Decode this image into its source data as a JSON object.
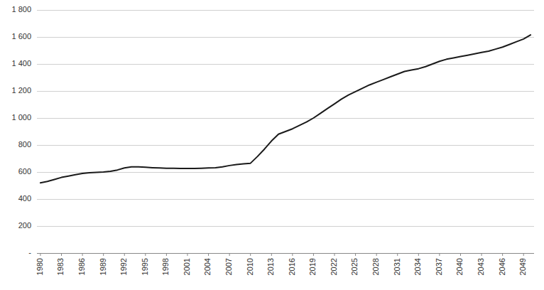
{
  "chart_data": {
    "type": "line",
    "x": [
      1980,
      1981,
      1982,
      1983,
      1984,
      1985,
      1986,
      1987,
      1988,
      1989,
      1990,
      1991,
      1992,
      1993,
      1994,
      1995,
      1996,
      1997,
      1998,
      1999,
      2000,
      2001,
      2002,
      2003,
      2004,
      2005,
      2006,
      2007,
      2008,
      2009,
      2010,
      2011,
      2012,
      2013,
      2014,
      2015,
      2016,
      2017,
      2018,
      2019,
      2020,
      2021,
      2022,
      2023,
      2024,
      2025,
      2026,
      2027,
      2028,
      2029,
      2030,
      2031,
      2032,
      2033,
      2034,
      2035,
      2036,
      2037,
      2038,
      2039,
      2040,
      2041,
      2042,
      2043,
      2044,
      2045,
      2046,
      2047,
      2048,
      2049,
      2050
    ],
    "values": [
      520,
      530,
      545,
      560,
      570,
      580,
      590,
      595,
      598,
      600,
      605,
      615,
      630,
      638,
      638,
      635,
      632,
      630,
      628,
      627,
      626,
      626,
      626,
      628,
      630,
      632,
      638,
      648,
      655,
      660,
      665,
      715,
      770,
      830,
      880,
      900,
      920,
      945,
      970,
      1000,
      1035,
      1070,
      1105,
      1140,
      1170,
      1195,
      1220,
      1245,
      1265,
      1285,
      1305,
      1325,
      1345,
      1355,
      1365,
      1380,
      1400,
      1420,
      1435,
      1445,
      1455,
      1465,
      1475,
      1485,
      1495,
      1510,
      1525,
      1545,
      1565,
      1585,
      1615
    ],
    "color": "#1a1a1a",
    "xlim": [
      1979.5,
      2050.5
    ],
    "xticks": [
      1980,
      1983,
      1986,
      1989,
      1992,
      1995,
      1998,
      2001,
      2004,
      2007,
      2010,
      2013,
      2016,
      2019,
      2022,
      2025,
      2028,
      2031,
      2034,
      2037,
      2040,
      2043,
      2046,
      2049
    ],
    "ylim": [
      0,
      1800
    ],
    "yticks": [
      {
        "value": 0,
        "label": "-"
      },
      200,
      400,
      600,
      800,
      {
        "value": 1000,
        "label": "1 000"
      },
      {
        "value": 1200,
        "label": "1 200"
      },
      {
        "value": 1400,
        "label": "1 400"
      },
      {
        "value": 1600,
        "label": "1 600"
      },
      {
        "value": 1800,
        "label": "1 800"
      }
    ],
    "grid": true
  }
}
